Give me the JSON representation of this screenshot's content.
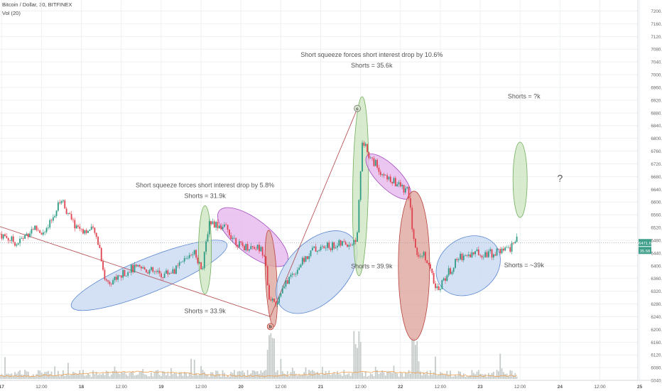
{
  "header": {
    "symbol": "Bitcoin / Dollar, 30, BITFINEX",
    "indicator": "Vol (20)"
  },
  "colors": {
    "up": "#2e9b84",
    "down": "#e0424f",
    "blue_fill": "#c9daf3",
    "blue_stroke": "#5a86d0",
    "purple_fill": "#e6b8ee",
    "purple_stroke": "#a24bbd",
    "green_fill": "#cfe6c2",
    "green_stroke": "#6fae5a",
    "red_fill": "#dfa89f",
    "red_stroke": "#b8423c",
    "trend_line": "#b0444a",
    "volume": "#c5cbc9",
    "volume_ma": "#f0a050",
    "price_line": "#7a8a8f"
  },
  "chart_data": {
    "type": "candlestick",
    "y_axis": {
      "ticks": [
        "7200.0",
        "7160.0",
        "7120.0",
        "7080.0",
        "7040.0",
        "7000.0",
        "6960.0",
        "6920.0",
        "6880.0",
        "6840.0",
        "6800.0",
        "6760.0",
        "6720.0",
        "6680.0",
        "6640.0",
        "6600.0",
        "6560.0",
        "6520.0",
        "6480.0",
        "6440.0",
        "6400.0",
        "6360.0",
        "6320.0",
        "6280.0",
        "6240.0",
        "6200.0",
        "6160.0",
        "6120.0",
        "6080.0",
        "6040.0"
      ],
      "range": [
        6040,
        7200
      ]
    },
    "x_axis": {
      "ticks": [
        "17",
        "12:00",
        "18",
        "12:00",
        "19",
        "12:00",
        "20",
        "12:00",
        "21",
        "12:00",
        "22",
        "12:00",
        "23",
        "12:00",
        "24",
        "12:00",
        "25"
      ],
      "day_values": [
        17.0,
        17.5,
        18.0,
        18.5,
        19.0,
        19.5,
        20.0,
        20.5,
        21.0,
        21.5,
        22.0,
        22.5,
        23.0,
        23.5,
        24.0,
        24.5,
        25.0
      ]
    },
    "last_price": "6471.6",
    "last_volume": "35.58",
    "price_path": [
      [
        16.98,
        6500
      ],
      [
        17.2,
        6470
      ],
      [
        17.4,
        6520
      ],
      [
        17.55,
        6500
      ],
      [
        17.75,
        6610
      ],
      [
        17.9,
        6530
      ],
      [
        18.05,
        6510
      ],
      [
        18.15,
        6510
      ],
      [
        18.22,
        6470
      ],
      [
        18.3,
        6350
      ],
      [
        18.45,
        6360
      ],
      [
        18.6,
        6390
      ],
      [
        18.8,
        6390
      ],
      [
        19.0,
        6370
      ],
      [
        19.2,
        6390
      ],
      [
        19.4,
        6450
      ],
      [
        19.52,
        6390
      ],
      [
        19.6,
        6540
      ],
      [
        19.8,
        6520
      ],
      [
        20.0,
        6460
      ],
      [
        20.2,
        6460
      ],
      [
        20.3,
        6440
      ],
      [
        20.36,
        6280
      ],
      [
        20.45,
        6290
      ],
      [
        20.6,
        6360
      ],
      [
        20.9,
        6450
      ],
      [
        21.1,
        6460
      ],
      [
        21.3,
        6470
      ],
      [
        21.45,
        6470
      ],
      [
        21.52,
        6800
      ],
      [
        21.6,
        6750
      ],
      [
        21.8,
        6680
      ],
      [
        22.0,
        6650
      ],
      [
        22.1,
        6630
      ],
      [
        22.18,
        6450
      ],
      [
        22.32,
        6430
      ],
      [
        22.45,
        6320
      ],
      [
        22.55,
        6360
      ],
      [
        22.75,
        6430
      ],
      [
        22.95,
        6440
      ],
      [
        23.15,
        6440
      ],
      [
        23.35,
        6450
      ],
      [
        23.45,
        6480
      ]
    ],
    "annotations": [
      {
        "text": "Short squeeze forces short interest drop by 5.8%",
        "day": 19.55,
        "price": 6646
      },
      {
        "text": "Shorts = 31.9k",
        "day": 19.55,
        "price": 6613
      },
      {
        "text": "Shorts = 33.9k",
        "day": 19.55,
        "price": 6251
      },
      {
        "text": "Short squeeze forces short interest drop by 10.6%",
        "day": 21.64,
        "price": 7056
      },
      {
        "text": "Shorts = 35.6k",
        "day": 21.64,
        "price": 7022
      },
      {
        "text": "Shorts = 39.9k",
        "day": 21.64,
        "price": 6392
      },
      {
        "text": "Shorts = ?k",
        "day": 23.55,
        "price": 6925
      },
      {
        "text": "Shorts = ~39k",
        "day": 23.55,
        "price": 6395
      },
      {
        "text": "?",
        "day": 24.0,
        "price": 6664
      }
    ],
    "markers": [
      {
        "label": "b",
        "day": 20.37,
        "price": 6209
      },
      {
        "label": "c",
        "day": 21.46,
        "price": 6894
      }
    ],
    "trend_lines": [
      {
        "from": [
          16.98,
          6523
        ],
        "to": [
          20.37,
          6240
        ]
      },
      {
        "from": [
          20.37,
          6240
        ],
        "to": [
          21.46,
          6894
        ]
      }
    ]
  }
}
